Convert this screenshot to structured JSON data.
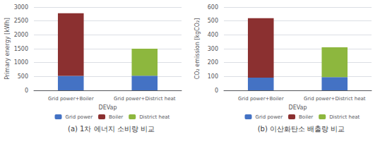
{
  "chart_data": [
    {
      "type": "bar",
      "stacked": true,
      "title": "(a) 1차 에너지 소비량 비교",
      "xlabel": "DEVap",
      "ylabel": "Primary energy [kWh]",
      "categories": [
        "Grid power+Boiler",
        "Grid power+District heat"
      ],
      "series": [
        {
          "name": "Grid power",
          "color": "#4472C4",
          "values": [
            520,
            530
          ]
        },
        {
          "name": "Boiler",
          "color": "#8B3030",
          "values": [
            2260,
            0
          ]
        },
        {
          "name": "District heat",
          "color": "#8DB73E",
          "values": [
            0,
            970
          ]
        }
      ],
      "ylim": [
        0,
        3000
      ],
      "yticks": [
        0,
        500,
        1000,
        1500,
        2000,
        2500,
        3000
      ],
      "grid": true,
      "legend": "bottom"
    },
    {
      "type": "bar",
      "stacked": true,
      "title": "(b) 이산화탄소 배출량 비교",
      "xlabel": "DEVap",
      "ylabel": "CO₂ emission [kgCO₂]",
      "categories": [
        "Grid power+Boiler",
        "Grid power+District heat"
      ],
      "series": [
        {
          "name": "Grid power",
          "color": "#4472C4",
          "values": [
            92,
            95
          ]
        },
        {
          "name": "Boiler",
          "color": "#8B3030",
          "values": [
            428,
            0
          ]
        },
        {
          "name": "District heat",
          "color": "#8DB73E",
          "values": [
            0,
            215
          ]
        }
      ],
      "ylim": [
        0,
        600
      ],
      "yticks": [
        0,
        100,
        200,
        300,
        400,
        500,
        600
      ],
      "grid": true,
      "legend": "bottom"
    }
  ]
}
